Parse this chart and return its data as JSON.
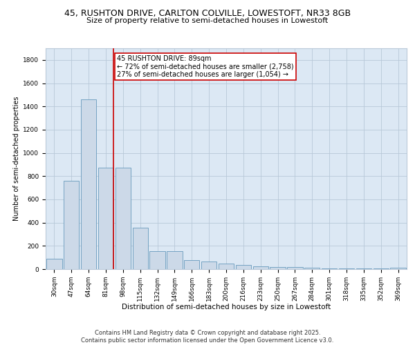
{
  "title1": "45, RUSHTON DRIVE, CARLTON COLVILLE, LOWESTOFT, NR33 8GB",
  "title2": "Size of property relative to semi-detached houses in Lowestoft",
  "xlabel": "Distribution of semi-detached houses by size in Lowestoft",
  "ylabel": "Number of semi-detached properties",
  "categories": [
    "30sqm",
    "47sqm",
    "64sqm",
    "81sqm",
    "98sqm",
    "115sqm",
    "132sqm",
    "149sqm",
    "166sqm",
    "183sqm",
    "200sqm",
    "216sqm",
    "233sqm",
    "250sqm",
    "267sqm",
    "284sqm",
    "301sqm",
    "318sqm",
    "335sqm",
    "352sqm",
    "369sqm"
  ],
  "values": [
    90,
    760,
    1460,
    870,
    870,
    355,
    155,
    155,
    75,
    65,
    50,
    35,
    25,
    20,
    15,
    10,
    8,
    5,
    4,
    3,
    10
  ],
  "bar_color": "#ccd9e8",
  "bar_edge_color": "#6699bb",
  "grid_color": "#b8c8d8",
  "background_color": "#dce8f4",
  "vline_x_index": 3,
  "vline_color": "#cc0000",
  "annotation_box_text": "45 RUSHTON DRIVE: 89sqm\n← 72% of semi-detached houses are smaller (2,758)\n27% of semi-detached houses are larger (1,054) →",
  "annotation_box_color": "#cc0000",
  "ylim": [
    0,
    1900
  ],
  "yticks": [
    0,
    200,
    400,
    600,
    800,
    1000,
    1200,
    1400,
    1600,
    1800
  ],
  "footnote": "Contains HM Land Registry data © Crown copyright and database right 2025.\nContains public sector information licensed under the Open Government Licence v3.0.",
  "title1_fontsize": 9,
  "title2_fontsize": 8,
  "xlabel_fontsize": 7.5,
  "ylabel_fontsize": 7,
  "tick_fontsize": 6.5,
  "annotation_fontsize": 7,
  "footnote_fontsize": 6
}
